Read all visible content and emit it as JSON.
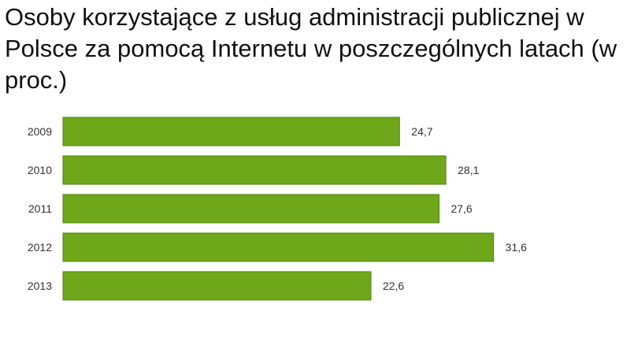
{
  "chart_data": {
    "type": "bar",
    "orientation": "horizontal",
    "title": "Osoby korzystające z usług administracji publicznej w Polsce za pomocą Internetu w poszczególnych latach (w proc.)",
    "categories": [
      "2009",
      "2010",
      "2011",
      "2012",
      "2013"
    ],
    "values": [
      24.7,
      28.1,
      27.6,
      31.6,
      22.6
    ],
    "value_labels": [
      "24,7",
      "28,1",
      "27,6",
      "31,6",
      "22,6"
    ],
    "xlim": [
      0,
      40
    ],
    "grid": false,
    "legend": "none",
    "colors": {
      "bar_fill": "#6ea81a",
      "bar_stroke": "#4f8010"
    }
  }
}
